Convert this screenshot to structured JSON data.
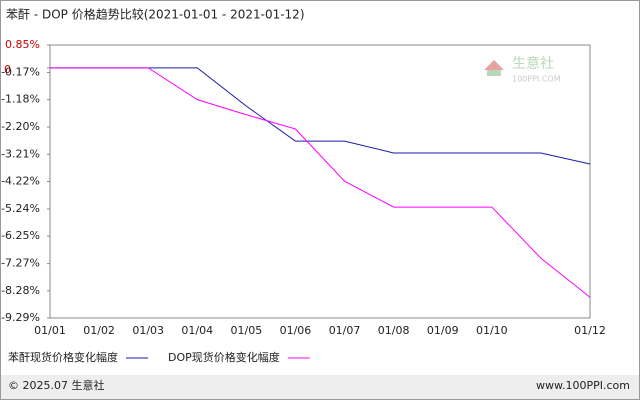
{
  "chart_data": {
    "type": "line",
    "title": "苯酐 - DOP 价格趋势比较(2021-01-01 - 2021-01-12)",
    "categories": [
      "01/01",
      "01/02",
      "01/03",
      "01/04",
      "01/05",
      "01/06",
      "01/07",
      "01/08",
      "01/09",
      "01/10",
      null,
      "01/12"
    ],
    "series": [
      {
        "name": "苯酐现货价格变化幅度",
        "color": "#1a1aa8",
        "values": [
          0,
          0,
          0,
          0,
          -1.42,
          -2.72,
          -2.72,
          -3.16,
          -3.16,
          -3.16,
          -3.16,
          -3.57
        ]
      },
      {
        "name": "DOP现货价格变化幅度",
        "color": "#ff00ff",
        "values": [
          0,
          0,
          0,
          -1.18,
          -1.74,
          -2.27,
          -4.21,
          -5.17,
          -5.17,
          -5.17,
          -7.07,
          -8.52
        ]
      }
    ],
    "ylim": [
      -9.29,
      0.85
    ],
    "yticks": [
      {
        "value": 0.85,
        "label": "0.85%"
      },
      0,
      {
        "value": -0.17,
        "label": "-0.17%"
      },
      {
        "value": -1.18,
        "label": "-1.18%"
      },
      {
        "value": -2.2,
        "label": "-2.20%"
      },
      {
        "value": -3.21,
        "label": "-3.21%"
      },
      {
        "value": -4.22,
        "label": "-4.22%"
      },
      {
        "value": -5.24,
        "label": "-5.24%"
      },
      {
        "value": -6.25,
        "label": "-6.25%"
      },
      {
        "value": -7.27,
        "label": "-7.27%"
      },
      {
        "value": -8.28,
        "label": "-8.28%"
      },
      {
        "value": -9.29,
        "label": "-9.29%"
      }
    ],
    "positive_tick_color": "#cc0000",
    "grid": false,
    "watermark": [
      "生意社",
      "100PPI.COM"
    ],
    "footer_left": "© 2025.07 生意社",
    "footer_right": "www.100PPI.com"
  }
}
